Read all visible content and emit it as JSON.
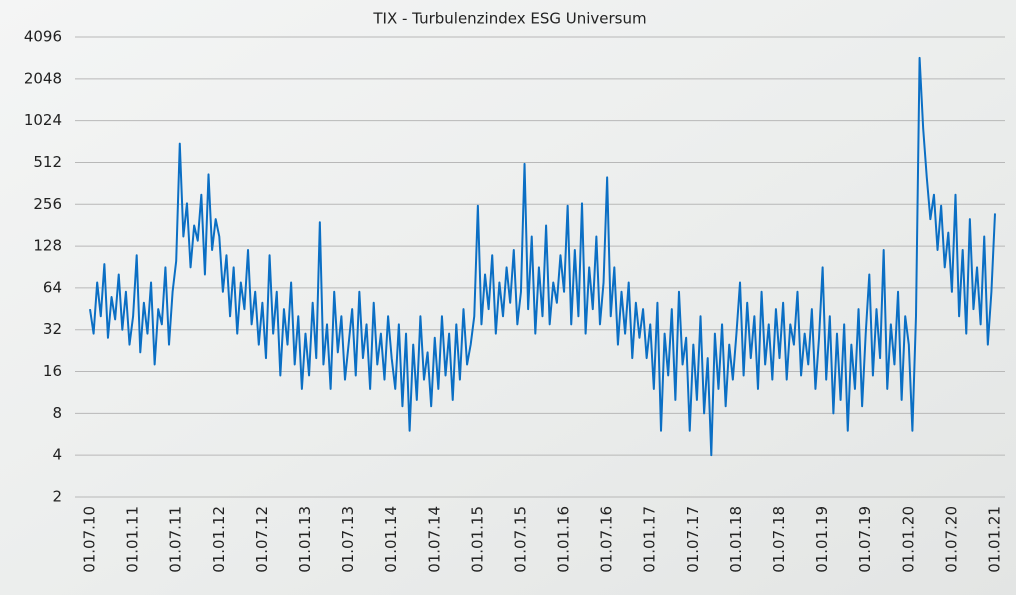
{
  "chart_data": {
    "type": "line",
    "title": "TIX - Turbulenzindex ESG Universum",
    "log_scale": true,
    "log_base": 2,
    "grid": true,
    "color": "#0b6fc4",
    "ylim": [
      2,
      4096
    ],
    "yticks": [
      2,
      4,
      8,
      16,
      32,
      64,
      128,
      256,
      512,
      1024,
      2048,
      4096
    ],
    "categories": [
      "01.07.10",
      null,
      null,
      null,
      null,
      null,
      null,
      null,
      null,
      null,
      null,
      null,
      "01.01.11",
      null,
      null,
      null,
      null,
      null,
      null,
      null,
      null,
      null,
      null,
      null,
      "01.07.11",
      null,
      null,
      null,
      null,
      null,
      null,
      null,
      null,
      null,
      null,
      null,
      "01.01.12",
      null,
      null,
      null,
      null,
      null,
      null,
      null,
      null,
      null,
      null,
      null,
      "01.07.12",
      null,
      null,
      null,
      null,
      null,
      null,
      null,
      null,
      null,
      null,
      null,
      "01.01.13",
      null,
      null,
      null,
      null,
      null,
      null,
      null,
      null,
      null,
      null,
      null,
      "01.07.13",
      null,
      null,
      null,
      null,
      null,
      null,
      null,
      null,
      null,
      null,
      null,
      "01.01.14",
      null,
      null,
      null,
      null,
      null,
      null,
      null,
      null,
      null,
      null,
      null,
      "01.07.14",
      null,
      null,
      null,
      null,
      null,
      null,
      null,
      null,
      null,
      null,
      null,
      "01.01.15",
      null,
      null,
      null,
      null,
      null,
      null,
      null,
      null,
      null,
      null,
      null,
      "01.07.15",
      null,
      null,
      null,
      null,
      null,
      null,
      null,
      null,
      null,
      null,
      null,
      "01.01.16",
      null,
      null,
      null,
      null,
      null,
      null,
      null,
      null,
      null,
      null,
      null,
      "01.07.16",
      null,
      null,
      null,
      null,
      null,
      null,
      null,
      null,
      null,
      null,
      null,
      "01.01.17",
      null,
      null,
      null,
      null,
      null,
      null,
      null,
      null,
      null,
      null,
      null,
      "01.07.17",
      null,
      null,
      null,
      null,
      null,
      null,
      null,
      null,
      null,
      null,
      null,
      "01.01.18",
      null,
      null,
      null,
      null,
      null,
      null,
      null,
      null,
      null,
      null,
      null,
      "01.07.18",
      null,
      null,
      null,
      null,
      null,
      null,
      null,
      null,
      null,
      null,
      null,
      "01.01.19",
      null,
      null,
      null,
      null,
      null,
      null,
      null,
      null,
      null,
      null,
      null,
      "01.07.19",
      null,
      null,
      null,
      null,
      null,
      null,
      null,
      null,
      null,
      null,
      null,
      "01.01.20",
      null,
      null,
      null,
      null,
      null,
      null,
      null,
      null,
      null,
      null,
      null,
      "01.07.20",
      null,
      null,
      null,
      null,
      null,
      null,
      null,
      null,
      null,
      null,
      null,
      "01.01.21"
    ],
    "values": [
      45,
      30,
      70,
      40,
      95,
      28,
      55,
      38,
      80,
      32,
      60,
      25,
      40,
      110,
      22,
      50,
      30,
      70,
      18,
      45,
      35,
      90,
      25,
      60,
      100,
      700,
      150,
      260,
      90,
      180,
      140,
      300,
      80,
      420,
      120,
      200,
      150,
      60,
      110,
      40,
      90,
      30,
      70,
      45,
      120,
      35,
      60,
      25,
      50,
      20,
      110,
      30,
      60,
      15,
      45,
      25,
      70,
      18,
      40,
      12,
      30,
      15,
      50,
      20,
      190,
      18,
      35,
      12,
      60,
      22,
      40,
      14,
      25,
      45,
      15,
      60,
      20,
      35,
      12,
      50,
      18,
      30,
      14,
      40,
      20,
      12,
      35,
      9,
      30,
      6,
      25,
      10,
      40,
      14,
      22,
      9,
      28,
      12,
      40,
      15,
      30,
      10,
      35,
      14,
      45,
      18,
      25,
      40,
      250,
      35,
      80,
      45,
      110,
      30,
      70,
      40,
      90,
      50,
      120,
      35,
      60,
      500,
      45,
      150,
      30,
      90,
      40,
      180,
      35,
      70,
      50,
      110,
      60,
      250,
      35,
      120,
      40,
      260,
      30,
      90,
      45,
      150,
      35,
      70,
      400,
      40,
      90,
      25,
      60,
      30,
      70,
      20,
      50,
      28,
      45,
      20,
      35,
      12,
      50,
      6,
      30,
      15,
      45,
      10,
      60,
      18,
      28,
      6,
      25,
      10,
      40,
      8,
      20,
      4,
      30,
      12,
      35,
      9,
      25,
      14,
      30,
      70,
      15,
      50,
      20,
      40,
      12,
      60,
      18,
      35,
      14,
      45,
      20,
      50,
      14,
      35,
      25,
      60,
      15,
      30,
      18,
      45,
      12,
      28,
      90,
      14,
      40,
      8,
      30,
      10,
      35,
      6,
      25,
      12,
      45,
      9,
      30,
      80,
      15,
      45,
      20,
      120,
      12,
      35,
      18,
      60,
      10,
      40,
      25,
      6,
      40,
      2900,
      900,
      400,
      200,
      300,
      120,
      250,
      90,
      160,
      60,
      300,
      40,
      120,
      30,
      200,
      45,
      90,
      35,
      150,
      25,
      60,
      220
    ]
  }
}
